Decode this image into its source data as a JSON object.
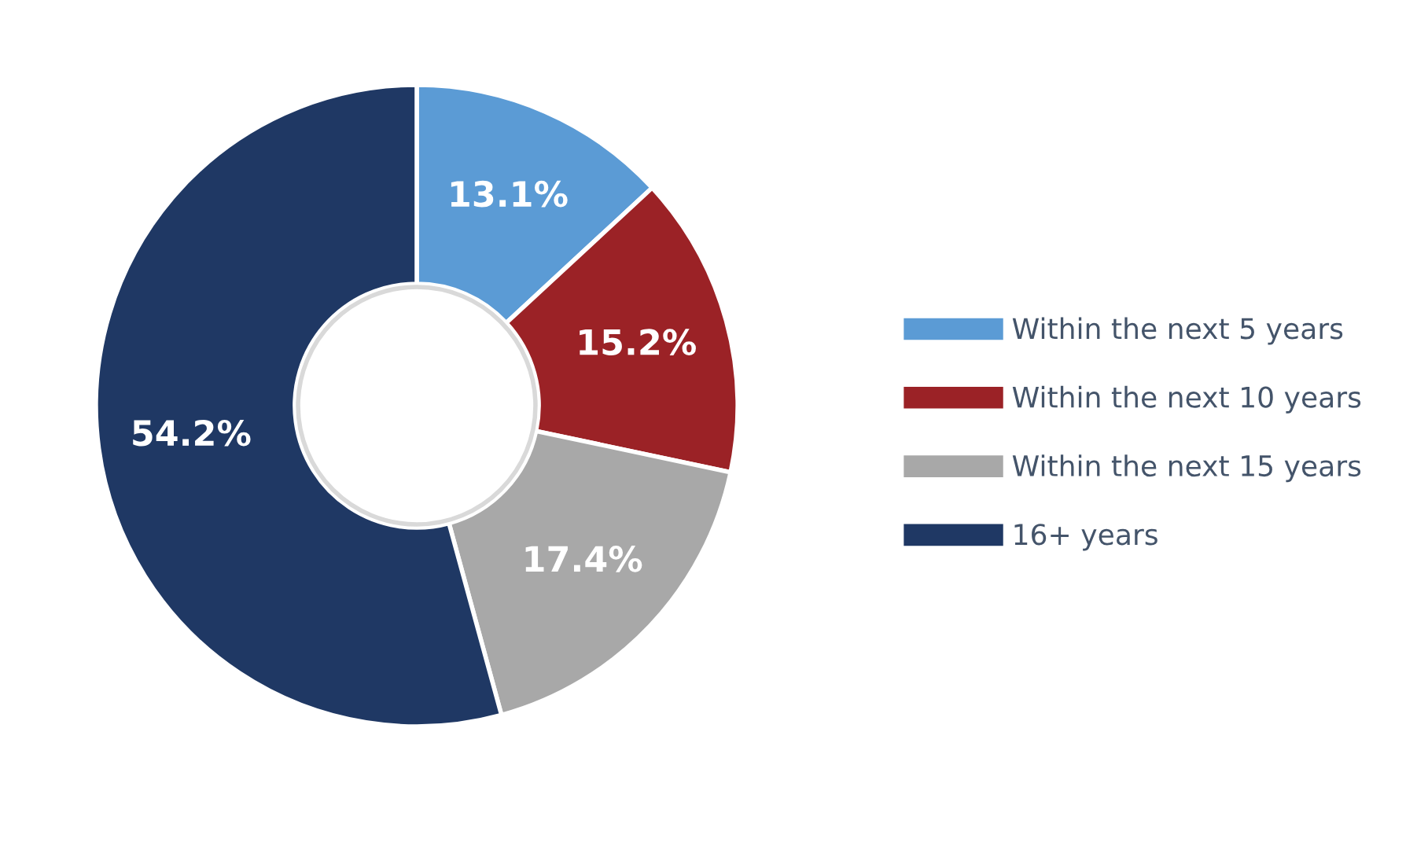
{
  "chart_data": {
    "type": "donut",
    "categories": [
      "Within the next 5 years",
      "Within the next 10 years",
      "Within the next 15 years",
      "16+ years"
    ],
    "values": [
      13.1,
      15.2,
      17.4,
      54.2
    ],
    "colors": [
      "#5b9bd5",
      "#9b2226",
      "#a8a8a8",
      "#1f3864"
    ],
    "value_labels": [
      "13.1%",
      "15.2%",
      "17.4%",
      "54.2%"
    ],
    "legend": "right"
  }
}
